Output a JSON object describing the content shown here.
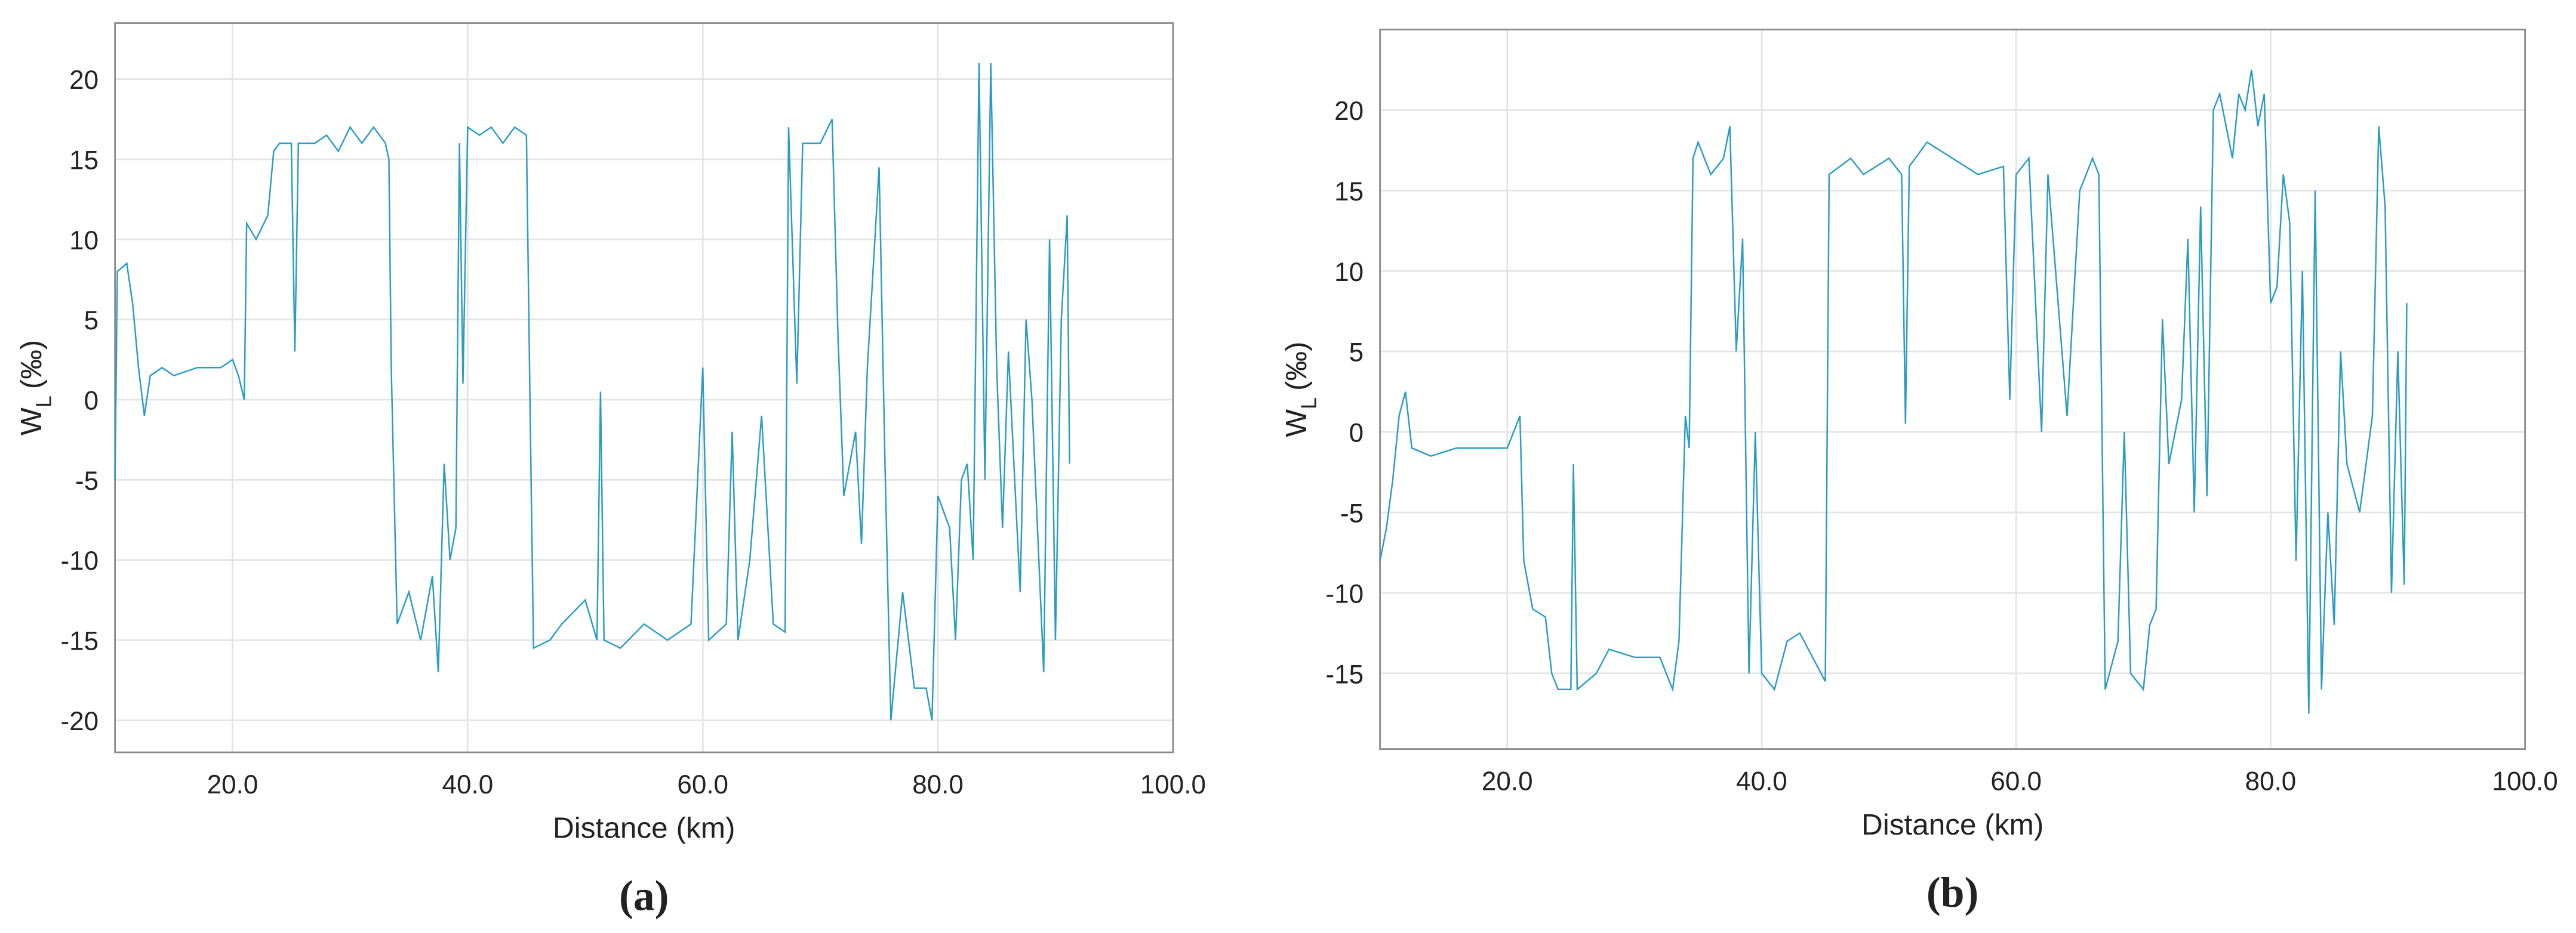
{
  "chart_data": [
    {
      "type": "line",
      "panel_label": "(a)",
      "xlabel": "Distance (km)",
      "ylabel": "W",
      "ylabel_sub": "L",
      "ylabel_unit": "(‰)",
      "xlim": [
        10,
        100
      ],
      "ylim": [
        -22,
        23.5
      ],
      "grid": true,
      "xticks": [
        {
          "value": 20,
          "label": "20.0"
        },
        {
          "value": 40,
          "label": "40.0"
        },
        {
          "value": 60,
          "label": "60.0"
        },
        {
          "value": 80,
          "label": "80.0"
        },
        {
          "value": 100,
          "label": "100.0"
        }
      ],
      "yticks": [
        -20,
        -15,
        -10,
        -5,
        0,
        5,
        10,
        15,
        20
      ],
      "x": [
        10,
        10.2,
        11,
        11.5,
        12,
        12.5,
        13,
        14,
        15,
        17,
        19,
        20,
        20.5,
        21,
        21.2,
        22,
        23,
        23.5,
        24,
        25,
        25.3,
        25.6,
        27,
        28,
        29,
        30,
        31,
        32,
        33,
        33.3,
        33.5,
        34,
        35,
        36,
        37,
        37.5,
        38,
        38.5,
        39,
        39.3,
        39.6,
        40,
        41,
        42,
        43,
        44,
        45,
        45.3,
        45.6,
        47,
        48,
        50,
        51,
        51.3,
        51.6,
        53,
        55,
        57,
        59,
        60,
        60.5,
        62,
        62.5,
        63,
        64,
        65,
        66,
        67,
        67.3,
        68,
        68.5,
        70,
        71,
        71.5,
        72,
        73,
        73.5,
        74,
        75,
        75.5,
        76,
        77,
        78,
        79,
        79.5,
        80,
        81,
        81.5,
        82,
        82.5,
        83,
        83.5,
        84,
        84.5,
        85,
        85.5,
        86,
        87,
        87.5,
        88,
        89,
        89.5,
        90,
        90.5,
        91,
        91.2
      ],
      "series": [
        {
          "color": "#2a9cc4",
          "values": [
            -5,
            8,
            8.5,
            6,
            2,
            -1,
            1.5,
            2,
            1.5,
            2,
            2,
            2.5,
            1.5,
            0,
            11,
            10,
            11.5,
            15.5,
            16,
            16,
            3,
            16,
            16,
            16.5,
            15.5,
            17,
            16,
            17,
            16,
            15,
            2,
            -14,
            -12,
            -15,
            -11,
            -17,
            -4,
            -10,
            -8,
            16,
            1,
            17,
            16.5,
            17,
            16,
            17,
            16.5,
            0,
            -15.5,
            -15,
            -14,
            -12.5,
            -15,
            0.5,
            -15,
            -15.5,
            -14,
            -15,
            -14,
            2,
            -15,
            -14,
            -2,
            -15,
            -10,
            -1,
            -14,
            -14.5,
            17,
            1,
            16,
            16,
            17.5,
            4,
            -6,
            -2,
            -9,
            2,
            14.5,
            -4,
            -20,
            -12,
            -18,
            -18,
            -20,
            -6,
            -8,
            -15,
            -5,
            -4,
            -10,
            21,
            -5,
            21,
            2,
            -8,
            3,
            -12,
            5,
            0,
            -17,
            10,
            -15,
            5,
            11.5,
            -4
          ]
        }
      ]
    },
    {
      "type": "line",
      "panel_label": "(b)",
      "xlabel": "Distance (km)",
      "ylabel": "W",
      "ylabel_sub": "L",
      "ylabel_unit": "(‰)",
      "xlim": [
        10,
        100
      ],
      "ylim": [
        -19.7,
        25
      ],
      "grid": true,
      "xticks": [
        {
          "value": 20,
          "label": "20.0"
        },
        {
          "value": 40,
          "label": "40.0"
        },
        {
          "value": 60,
          "label": "60.0"
        },
        {
          "value": 80,
          "label": "80.0"
        },
        {
          "value": 100,
          "label": "100.0"
        }
      ],
      "yticks": [
        -15,
        -10,
        -5,
        0,
        5,
        10,
        15,
        20
      ],
      "x": [
        10,
        10.5,
        11,
        11.5,
        12,
        12.5,
        14,
        16,
        18,
        20,
        21,
        21.3,
        22,
        23,
        23.5,
        24,
        25,
        25.2,
        25.5,
        27,
        28,
        30,
        32,
        33,
        33.5,
        34,
        34.3,
        34.6,
        35,
        36,
        37,
        37.5,
        38,
        38.5,
        39,
        39.5,
        40,
        41,
        42,
        43,
        44,
        45,
        45.3,
        47,
        48,
        50,
        51,
        51.3,
        51.6,
        53,
        55,
        57,
        59,
        59.5,
        60,
        61,
        62,
        62.5,
        64,
        65,
        66,
        66.5,
        67,
        68,
        68.5,
        69,
        70,
        70.5,
        71,
        71.5,
        72,
        73,
        73.5,
        74,
        74.5,
        75,
        75.5,
        76,
        77,
        77.5,
        78,
        78.5,
        79,
        79.5,
        80,
        80.5,
        81,
        81.5,
        82,
        82.5,
        83,
        83.5,
        84,
        84.5,
        85,
        85.5,
        86,
        87,
        88,
        88.5,
        89,
        89.5,
        90,
        90.5,
        90.7
      ],
      "series": [
        {
          "color": "#2a9cc4",
          "values": [
            -8,
            -6,
            -3,
            1,
            2.5,
            -1,
            -1.5,
            -1,
            -1,
            -1,
            1,
            -8,
            -11,
            -11.5,
            -15,
            -16,
            -16,
            -2,
            -16,
            -15,
            -13.5,
            -14,
            -14,
            -16,
            -13,
            1,
            -1,
            17,
            18,
            16,
            17,
            19,
            5,
            12,
            -15,
            0,
            -15,
            -16,
            -13,
            -12.5,
            -14,
            -15.5,
            16,
            17,
            16,
            17,
            16,
            0.5,
            16.5,
            18,
            17,
            16,
            16.5,
            2,
            16,
            17,
            0,
            16,
            1,
            15,
            17,
            16,
            -16,
            -13,
            0,
            -15,
            -16,
            -12,
            -11,
            7,
            -2,
            2,
            12,
            -5,
            14,
            -4,
            20,
            21,
            17,
            21,
            20,
            22.5,
            19,
            21,
            8,
            9,
            16,
            13,
            -8,
            10,
            -17.5,
            15,
            -16,
            -5,
            -12,
            5,
            -2,
            -5,
            1,
            19,
            14,
            -10,
            5,
            -9.5,
            8
          ]
        }
      ]
    }
  ]
}
